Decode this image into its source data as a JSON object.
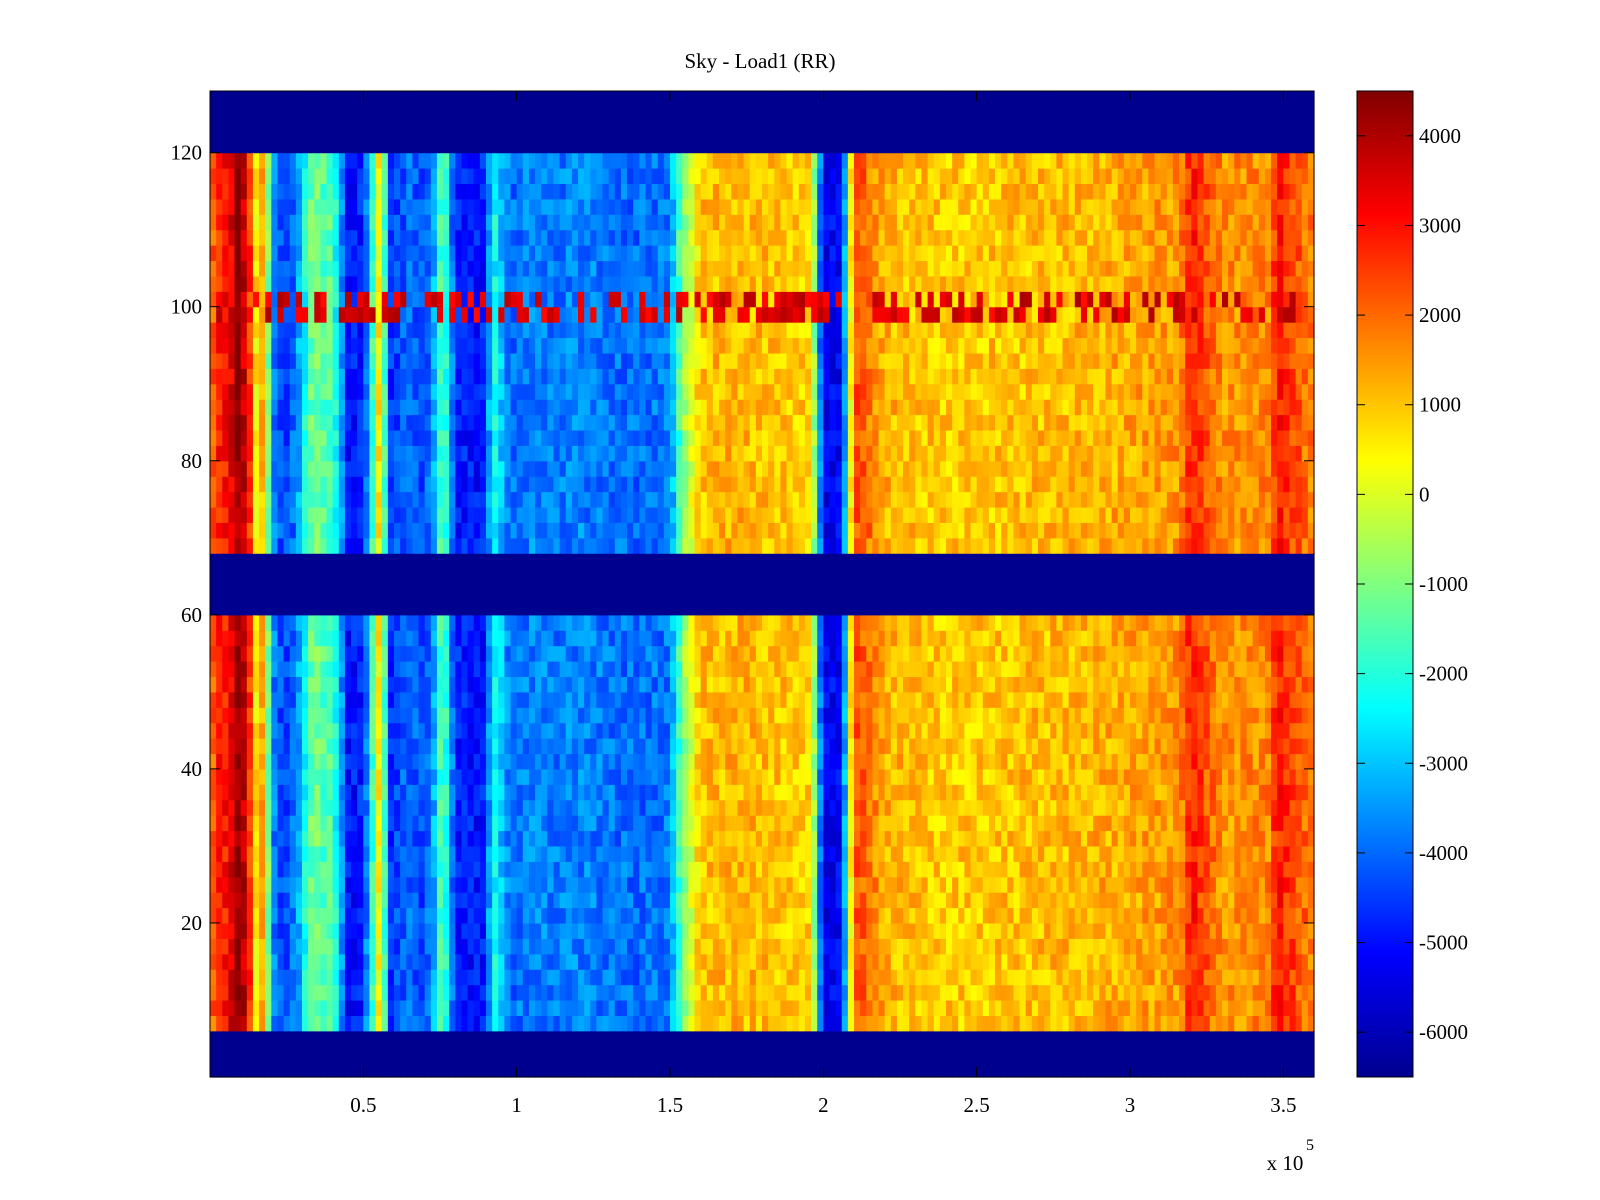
{
  "chart_data": {
    "type": "heatmap",
    "title": "Sky - Load1 (RR)",
    "xlabel": "",
    "ylabel": "",
    "x_exponent_label": "x 10",
    "x_exponent": "5",
    "xlim": [
      0,
      360000
    ],
    "ylim": [
      0,
      128
    ],
    "x_ticks": [
      50000,
      100000,
      150000,
      200000,
      250000,
      300000,
      350000
    ],
    "x_tick_labels": [
      "0.5",
      "1",
      "1.5",
      "2",
      "2.5",
      "3",
      "3.5"
    ],
    "y_ticks": [
      20,
      40,
      60,
      80,
      100,
      120
    ],
    "y_tick_labels": [
      "20",
      "40",
      "60",
      "80",
      "100",
      "120"
    ],
    "colorbar": {
      "range": [
        -6500,
        4500
      ],
      "ticks": [
        4000,
        3000,
        2000,
        1000,
        0,
        -1000,
        -2000,
        -3000,
        -4000,
        -5000,
        -6000
      ],
      "tick_labels": [
        "4000",
        "3000",
        "2000",
        "1000",
        "0",
        "-1000",
        "-2000",
        "-3000",
        "-4000",
        "-5000",
        "-6000"
      ],
      "colormap": "jet"
    },
    "masked_rows": [
      [
        0,
        7
      ],
      [
        61,
        69
      ],
      [
        121,
        128
      ]
    ],
    "masked_value": -6500,
    "column_profile_x": [
      0,
      3000,
      6000,
      9000,
      12000,
      15000,
      18000,
      20000,
      24000,
      28000,
      31000,
      34000,
      36000,
      40000,
      45000,
      50000,
      56000,
      58000,
      62000,
      65000,
      70000,
      73000,
      76000,
      80000,
      86000,
      90000,
      92000,
      98000,
      105000,
      112000,
      120000,
      130000,
      140000,
      150000,
      154000,
      160000,
      170000,
      185000,
      196000,
      200000,
      206000,
      210000,
      214000,
      220000,
      240000,
      260000,
      280000,
      300000,
      316000,
      320000,
      330000,
      345000,
      348000,
      360000
    ],
    "column_profile_value": [
      1800,
      2800,
      3000,
      4300,
      3500,
      600,
      1500,
      -3500,
      -4500,
      -3800,
      -2200,
      -800,
      -1500,
      -1500,
      -5000,
      -4800,
      1500,
      -4800,
      -4200,
      -4000,
      -4400,
      -3200,
      -1000,
      -4800,
      -5000,
      -4800,
      -2000,
      -4000,
      -3700,
      -3800,
      -3700,
      -3900,
      -4000,
      -3800,
      -1000,
      1000,
      1200,
      1000,
      800,
      -5300,
      -5200,
      2300,
      2000,
      1200,
      900,
      1000,
      1100,
      1300,
      1500,
      2900,
      1500,
      1700,
      2900,
      1700
    ],
    "hot_row_band": {
      "y_range": [
        98,
        102
      ],
      "value": 3000
    }
  }
}
